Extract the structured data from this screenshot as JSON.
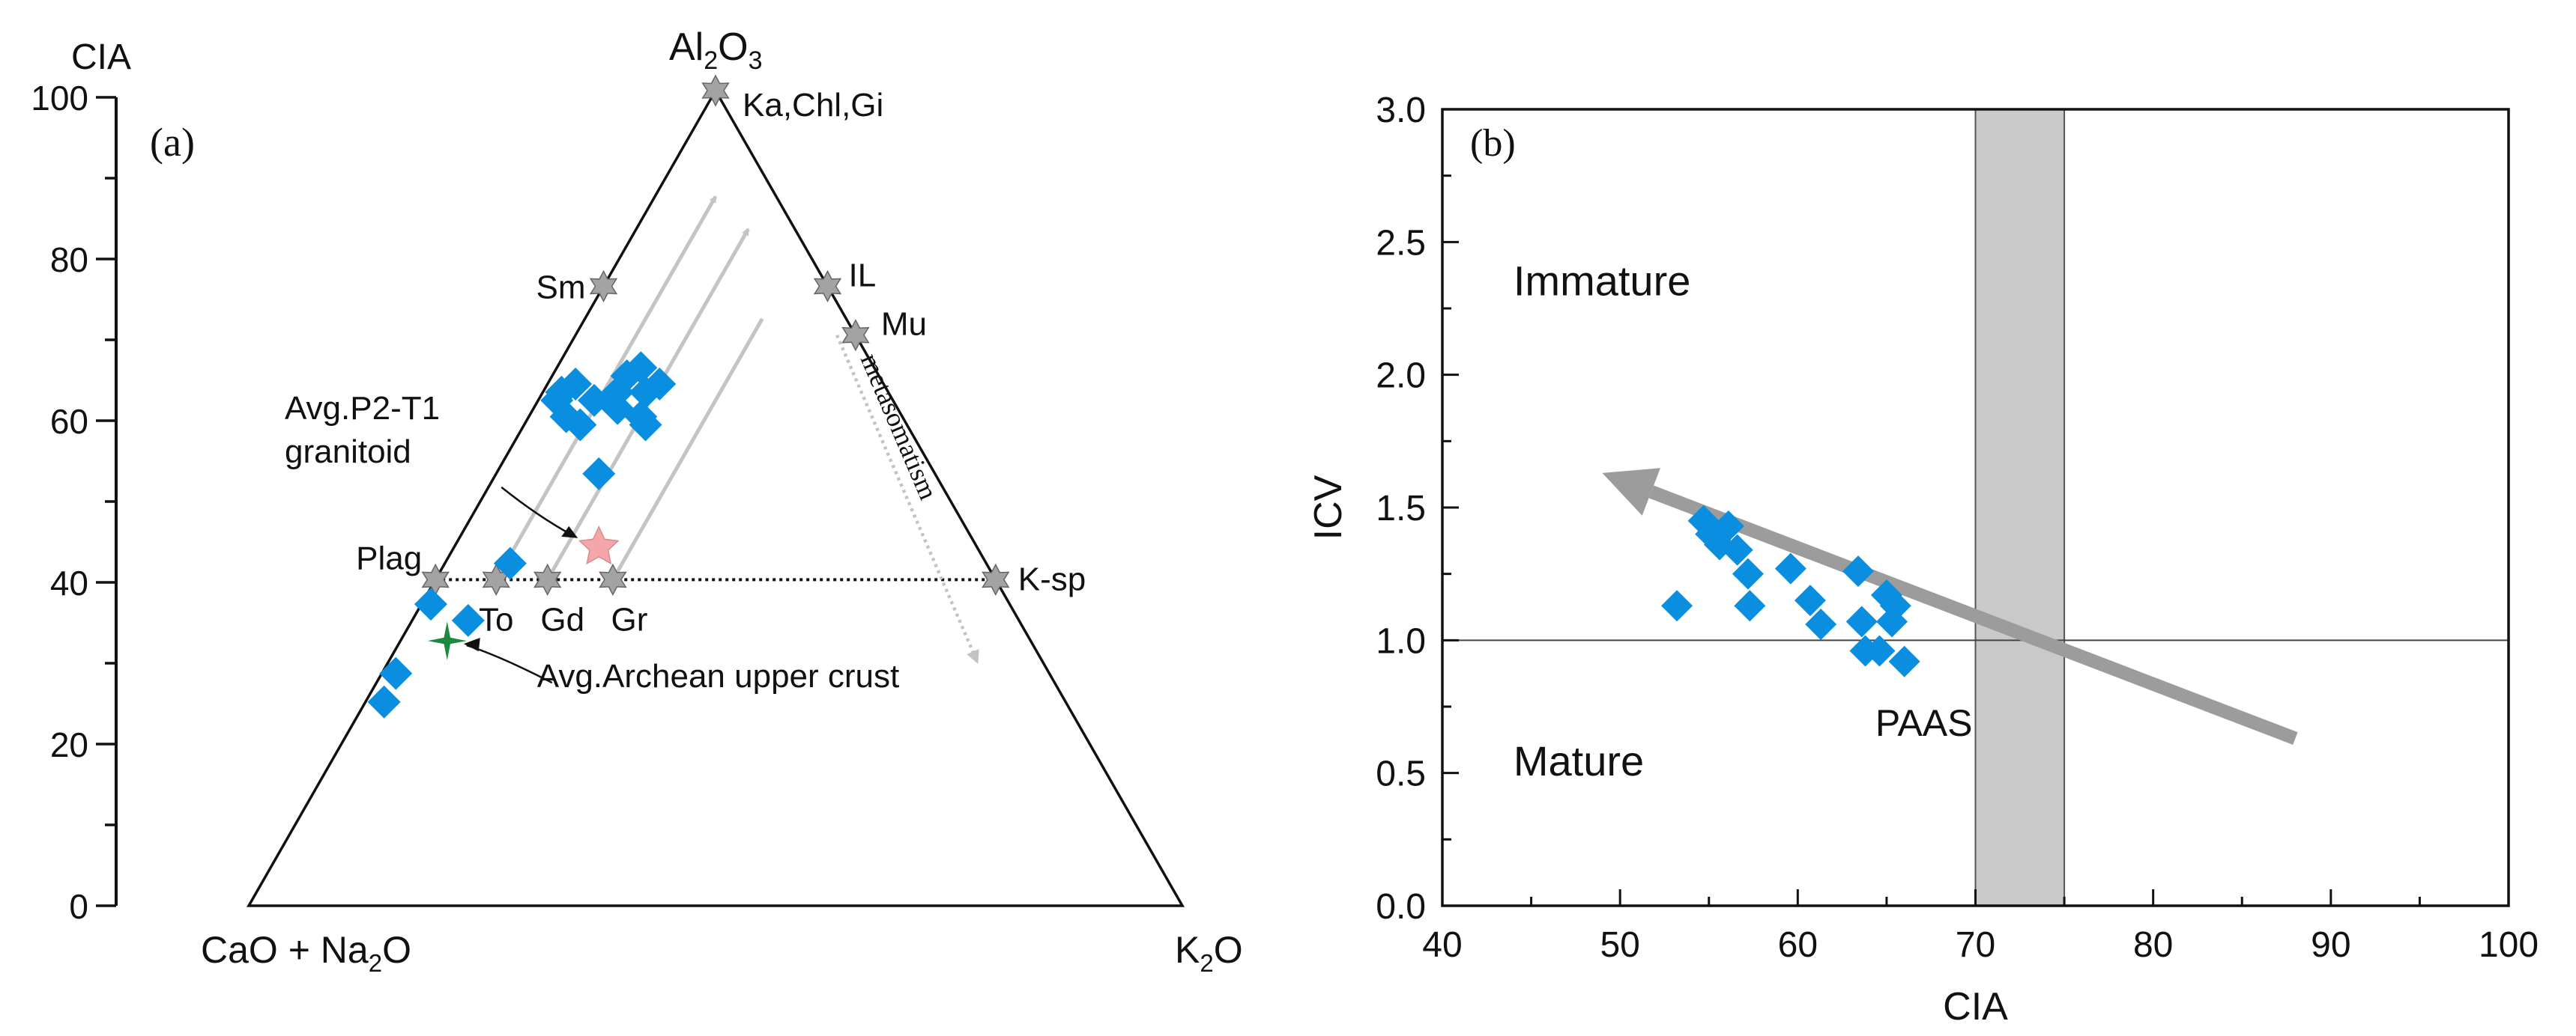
{
  "chart_data": [
    {
      "type": "scatter",
      "panel_label": "(a)",
      "subtype": "ternary",
      "vertices": {
        "top": {
          "base": "Al",
          "sub1": "2",
          "mid": "O",
          "sub2": "3"
        },
        "left": {
          "pre": "CaO + Na",
          "sub": "2",
          "post": "O"
        },
        "right": {
          "pre": "K",
          "sub": "2",
          "post": "O"
        }
      },
      "cia_axis": {
        "label": "CIA",
        "range": [
          0,
          100
        ],
        "major_ticks": [
          0,
          20,
          40,
          60,
          80,
          100
        ],
        "tick_labels": [
          "0",
          "20",
          "40",
          "60",
          "80",
          "100"
        ],
        "minor_step": 10
      },
      "reference_minerals": [
        {
          "label": "Ka,Chl,Gi",
          "A": 100,
          "CN": 0,
          "K": 0
        },
        {
          "label": "Sm",
          "A": 76,
          "CN": 24,
          "K": 0
        },
        {
          "label": "IL",
          "A": 76,
          "CN": 0,
          "K": 24
        },
        {
          "label": "Mu",
          "A": 70,
          "CN": 0,
          "K": 30
        },
        {
          "label": "Plag",
          "A": 40,
          "CN": 60,
          "K": 0
        },
        {
          "label": "To",
          "A": 40,
          "CN": 53.5,
          "K": 6.5
        },
        {
          "label": "Gd",
          "A": 40,
          "CN": 48,
          "K": 12
        },
        {
          "label": "Gr",
          "A": 40,
          "CN": 41,
          "K": 19
        },
        {
          "label": "K-sp",
          "A": 40,
          "CN": 0,
          "K": 60
        }
      ],
      "feldspar_join": {
        "A": 40
      },
      "trend_arrows": [
        {
          "from": {
            "A": 40,
            "CN": 53.5
          },
          "to": {
            "A": 87,
            "CN": 6.5
          }
        },
        {
          "from": {
            "A": 40,
            "CN": 48
          },
          "to": {
            "A": 83,
            "CN": 5
          }
        },
        {
          "from": {
            "A": 40,
            "CN": 41
          },
          "to": {
            "A": 72,
            "CN": 9
          }
        }
      ],
      "metasomatism": {
        "label": "metasomatism",
        "from": {
          "A": 70,
          "CN": 2
        },
        "to": {
          "A": 30,
          "CN": 7
        }
      },
      "samples": [
        {
          "A": 37,
          "CN": 62
        },
        {
          "A": 35,
          "CN": 59
        },
        {
          "A": 28.5,
          "CN": 70
        },
        {
          "A": 25,
          "CN": 73
        },
        {
          "A": 42,
          "CN": 51
        },
        {
          "A": 53,
          "CN": 36
        },
        {
          "A": 59,
          "CN": 35
        },
        {
          "A": 60,
          "CN": 36
        },
        {
          "A": 62,
          "CN": 36
        },
        {
          "A": 63,
          "CN": 35
        },
        {
          "A": 64,
          "CN": 33
        },
        {
          "A": 62,
          "CN": 32
        },
        {
          "A": 61,
          "CN": 30
        },
        {
          "A": 63,
          "CN": 29
        },
        {
          "A": 60,
          "CN": 28
        },
        {
          "A": 59,
          "CN": 28
        },
        {
          "A": 65,
          "CN": 27
        },
        {
          "A": 66,
          "CN": 25
        },
        {
          "A": 64,
          "CN": 24
        },
        {
          "A": 63,
          "CN": 26
        }
      ],
      "granitoid_point": {
        "label_lines": [
          "Avg.P2-T1",
          "granitoid"
        ],
        "A": 44,
        "CN": 40.5
      },
      "archean_point": {
        "label": "Avg.Archean upper crust",
        "A": 32.5,
        "CN": 62.5
      },
      "colors": {
        "sample": "#0a8fe0",
        "mineral": "#a3a3a3",
        "granitoid": "#f4a6aa",
        "archean": "#1c8a3e",
        "trend": "#c4c4c4"
      }
    },
    {
      "type": "scatter",
      "panel_label": "(b)",
      "xlabel": "CIA",
      "ylabel": "ICV",
      "xlim": [
        40,
        100
      ],
      "ylim": [
        0,
        3
      ],
      "x_ticks": [
        40,
        50,
        60,
        70,
        80,
        90,
        100
      ],
      "x_tick_labels": [
        "40",
        "50",
        "60",
        "70",
        "80",
        "90",
        "100"
      ],
      "y_ticks": [
        0,
        0.5,
        1,
        1.5,
        2,
        2.5,
        3
      ],
      "y_tick_labels": [
        "0.0",
        "0.5",
        "1.0",
        "1.5",
        "2.0",
        "2.5",
        "3.0"
      ],
      "reference_line_y": 1,
      "band": {
        "x0": 70,
        "x1": 75,
        "label": "PAAS"
      },
      "region_labels": [
        {
          "text": "Immature",
          "x": 44,
          "y": 2.3
        },
        {
          "text": "Mature",
          "x": 44,
          "y": 0.49
        }
      ],
      "arrow": {
        "from": [
          88,
          0.63
        ],
        "to": [
          49,
          1.63
        ]
      },
      "points": [
        {
          "x": 53.2,
          "y": 1.13
        },
        {
          "x": 54.7,
          "y": 1.45
        },
        {
          "x": 55.1,
          "y": 1.4
        },
        {
          "x": 55.6,
          "y": 1.36
        },
        {
          "x": 56.1,
          "y": 1.43
        },
        {
          "x": 56.6,
          "y": 1.34
        },
        {
          "x": 57.2,
          "y": 1.25
        },
        {
          "x": 57.3,
          "y": 1.13
        },
        {
          "x": 59.6,
          "y": 1.27
        },
        {
          "x": 60.7,
          "y": 1.15
        },
        {
          "x": 61.3,
          "y": 1.06
        },
        {
          "x": 63.4,
          "y": 1.26
        },
        {
          "x": 63.6,
          "y": 1.07
        },
        {
          "x": 63.8,
          "y": 0.96
        },
        {
          "x": 64.6,
          "y": 0.96
        },
        {
          "x": 65.0,
          "y": 1.17
        },
        {
          "x": 65.3,
          "y": 1.07
        },
        {
          "x": 65.5,
          "y": 1.13
        },
        {
          "x": 66.0,
          "y": 0.92
        }
      ],
      "colors": {
        "points": "#0a8fe0",
        "band": "#c9c9c9",
        "arrow": "#9c9c9c"
      }
    }
  ]
}
